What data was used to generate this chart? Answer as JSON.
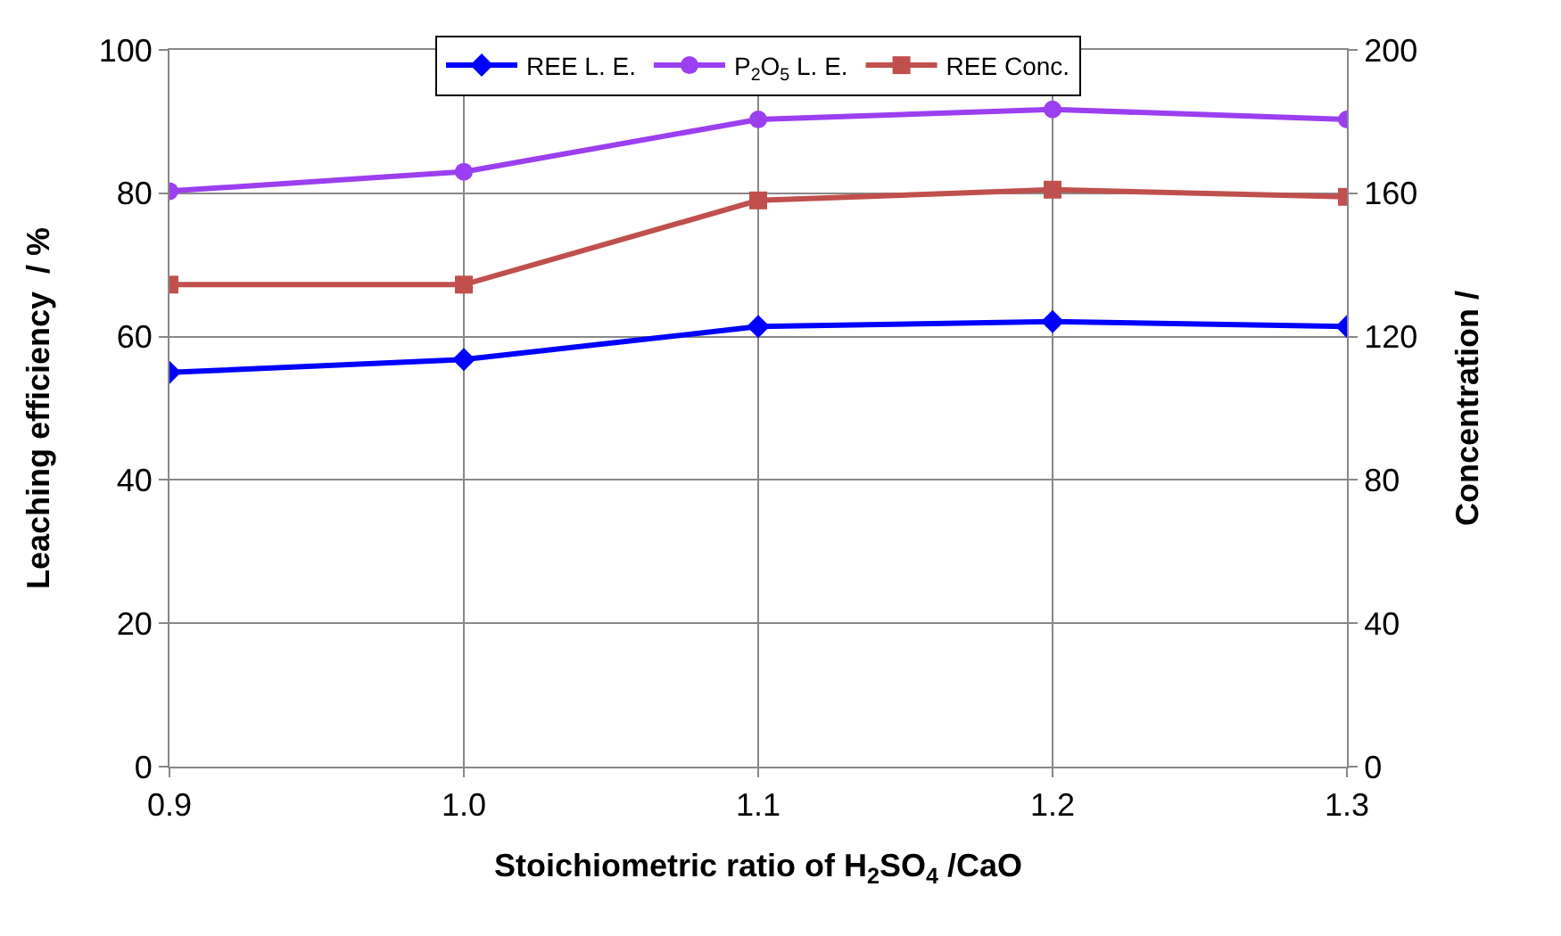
{
  "chart_data": {
    "type": "line",
    "xlabel": "Stoichiometric ratio of H$_{2}$SO$_{4}$ /CaO",
    "ylabel": "Leaching efficiency  / %",
    "y2label": "Concentration /",
    "x": [
      0.9,
      1.0,
      1.1,
      1.2,
      1.3
    ],
    "xlim": [
      0.9,
      1.3
    ],
    "xticks": [
      0.9,
      {
        "value": 1,
        "label": "1.0"
      },
      1.1,
      1.2,
      1.3
    ],
    "ylim": [
      0,
      100
    ],
    "yticks": [
      0,
      20,
      40,
      60,
      80,
      100
    ],
    "y2lim": [
      0,
      200
    ],
    "y2ticks": [
      0,
      40,
      80,
      120,
      160,
      200
    ],
    "grid": true,
    "legend": "top",
    "line_style": "solid",
    "series": [
      {
        "name": "REE L. E.",
        "color": "#0000ff",
        "marker": "diamond",
        "values": [
          55,
          56.8,
          61.4,
          62.1,
          61.4
        ]
      },
      {
        "name": "P$_{2}$O$_{5}$ L. E.",
        "color": "#9b3ff0",
        "marker": "circle",
        "values": [
          80.3,
          83,
          90.3,
          91.7,
          90.3
        ]
      },
      {
        "name": "REE Conc.",
        "color": "#c0504d",
        "marker": "square",
        "axis": "y2",
        "values": [
          134.5,
          134.5,
          158,
          161,
          159
        ]
      }
    ]
  }
}
